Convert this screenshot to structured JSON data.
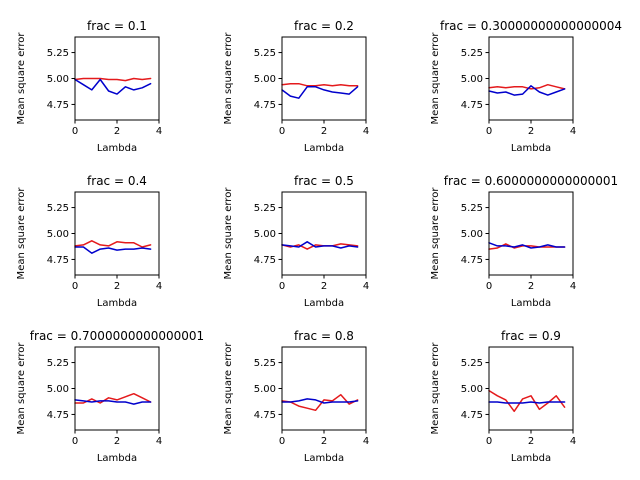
{
  "chart_data": [
    {
      "type": "line",
      "title": "frac = 0.1",
      "xlabel": "Lambda",
      "ylabel": "Mean square error",
      "xlim": [
        0,
        4
      ],
      "ylim": [
        4.6,
        5.4
      ],
      "xticks": [
        0,
        2,
        4
      ],
      "yticks": [
        4.75,
        5.0,
        5.25
      ],
      "x": [
        0,
        0.4,
        0.8,
        1.2,
        1.6,
        2.0,
        2.4,
        2.8,
        3.2,
        3.6
      ],
      "series": [
        {
          "color": "#e41a1c",
          "values": [
            4.99,
            5.0,
            5.0,
            5.0,
            4.99,
            4.99,
            4.98,
            5.0,
            4.99,
            5.0
          ]
        },
        {
          "color": "#0000cc",
          "values": [
            4.99,
            4.94,
            4.89,
            4.99,
            4.88,
            4.85,
            4.92,
            4.89,
            4.91,
            4.95
          ]
        }
      ]
    },
    {
      "type": "line",
      "title": "frac = 0.2",
      "xlabel": "Lambda",
      "ylabel": "Mean square error",
      "xlim": [
        0,
        4
      ],
      "ylim": [
        4.6,
        5.4
      ],
      "xticks": [
        0,
        2,
        4
      ],
      "yticks": [
        4.75,
        5.0,
        5.25
      ],
      "x": [
        0,
        0.4,
        0.8,
        1.2,
        1.6,
        2.0,
        2.4,
        2.8,
        3.2,
        3.6
      ],
      "series": [
        {
          "color": "#e41a1c",
          "values": [
            4.94,
            4.95,
            4.95,
            4.93,
            4.93,
            4.94,
            4.93,
            4.94,
            4.93,
            4.93
          ]
        },
        {
          "color": "#0000cc",
          "values": [
            4.89,
            4.83,
            4.81,
            4.92,
            4.92,
            4.89,
            4.87,
            4.86,
            4.85,
            4.92
          ]
        }
      ]
    },
    {
      "type": "line",
      "title": "frac = 0.30000000000000004",
      "xlabel": "Lambda",
      "ylabel": "Mean square error",
      "xlim": [
        0,
        4
      ],
      "ylim": [
        4.6,
        5.4
      ],
      "xticks": [
        0,
        2,
        4
      ],
      "yticks": [
        4.75,
        5.0,
        5.25
      ],
      "x": [
        0,
        0.4,
        0.8,
        1.2,
        1.6,
        2.0,
        2.4,
        2.8,
        3.2,
        3.6
      ],
      "series": [
        {
          "color": "#e41a1c",
          "values": [
            4.91,
            4.92,
            4.91,
            4.92,
            4.92,
            4.9,
            4.91,
            4.94,
            4.92,
            4.9
          ]
        },
        {
          "color": "#0000cc",
          "values": [
            4.88,
            4.86,
            4.87,
            4.84,
            4.85,
            4.93,
            4.87,
            4.84,
            4.87,
            4.9
          ]
        }
      ]
    },
    {
      "type": "line",
      "title": "frac = 0.4",
      "xlabel": "Lambda",
      "ylabel": "Mean square error",
      "xlim": [
        0,
        4
      ],
      "ylim": [
        4.6,
        5.4
      ],
      "xticks": [
        0,
        2,
        4
      ],
      "yticks": [
        4.75,
        5.0,
        5.25
      ],
      "x": [
        0,
        0.4,
        0.8,
        1.2,
        1.6,
        2.0,
        2.4,
        2.8,
        3.2,
        3.6
      ],
      "series": [
        {
          "color": "#e41a1c",
          "values": [
            4.88,
            4.89,
            4.93,
            4.89,
            4.88,
            4.92,
            4.91,
            4.91,
            4.87,
            4.89
          ]
        },
        {
          "color": "#0000cc",
          "values": [
            4.87,
            4.87,
            4.81,
            4.85,
            4.86,
            4.84,
            4.85,
            4.85,
            4.86,
            4.85
          ]
        }
      ]
    },
    {
      "type": "line",
      "title": "frac = 0.5",
      "xlabel": "Lambda",
      "ylabel": "Mean square error",
      "xlim": [
        0,
        4
      ],
      "ylim": [
        4.6,
        5.4
      ],
      "xticks": [
        0,
        2,
        4
      ],
      "yticks": [
        4.75,
        5.0,
        5.25
      ],
      "x": [
        0,
        0.4,
        0.8,
        1.2,
        1.6,
        2.0,
        2.4,
        2.8,
        3.2,
        3.6
      ],
      "series": [
        {
          "color": "#e41a1c",
          "values": [
            4.89,
            4.87,
            4.89,
            4.85,
            4.89,
            4.88,
            4.88,
            4.9,
            4.89,
            4.88
          ]
        },
        {
          "color": "#0000cc",
          "values": [
            4.89,
            4.88,
            4.87,
            4.92,
            4.87,
            4.88,
            4.88,
            4.86,
            4.88,
            4.87
          ]
        }
      ]
    },
    {
      "type": "line",
      "title": "frac = 0.6000000000000001",
      "xlabel": "Lambda",
      "ylabel": "Mean square error",
      "xlim": [
        0,
        4
      ],
      "ylim": [
        4.6,
        5.4
      ],
      "xticks": [
        0,
        2,
        4
      ],
      "yticks": [
        4.75,
        5.0,
        5.25
      ],
      "x": [
        0,
        0.4,
        0.8,
        1.2,
        1.6,
        2.0,
        2.4,
        2.8,
        3.2,
        3.6
      ],
      "series": [
        {
          "color": "#e41a1c",
          "values": [
            4.85,
            4.86,
            4.9,
            4.86,
            4.88,
            4.88,
            4.87,
            4.87,
            4.87,
            4.87
          ]
        },
        {
          "color": "#0000cc",
          "values": [
            4.91,
            4.88,
            4.88,
            4.87,
            4.89,
            4.86,
            4.87,
            4.89,
            4.87,
            4.87
          ]
        }
      ]
    },
    {
      "type": "line",
      "title": "frac = 0.7000000000000001",
      "xlabel": "Lambda",
      "ylabel": "Mean square error",
      "xlim": [
        0,
        4
      ],
      "ylim": [
        4.6,
        5.4
      ],
      "xticks": [
        0,
        2,
        4
      ],
      "yticks": [
        4.75,
        5.0,
        5.25
      ],
      "x": [
        0,
        0.4,
        0.8,
        1.2,
        1.6,
        2.0,
        2.4,
        2.8,
        3.2,
        3.6
      ],
      "series": [
        {
          "color": "#e41a1c",
          "values": [
            4.86,
            4.86,
            4.9,
            4.86,
            4.91,
            4.89,
            4.92,
            4.95,
            4.91,
            4.87
          ]
        },
        {
          "color": "#0000cc",
          "values": [
            4.89,
            4.88,
            4.87,
            4.88,
            4.88,
            4.87,
            4.87,
            4.85,
            4.87,
            4.87
          ]
        }
      ]
    },
    {
      "type": "line",
      "title": "frac = 0.8",
      "xlabel": "Lambda",
      "ylabel": "Mean square error",
      "xlim": [
        0,
        4
      ],
      "ylim": [
        4.6,
        5.4
      ],
      "xticks": [
        0,
        2,
        4
      ],
      "yticks": [
        4.75,
        5.0,
        5.25
      ],
      "x": [
        0,
        0.4,
        0.8,
        1.2,
        1.6,
        2.0,
        2.4,
        2.8,
        3.2,
        3.6
      ],
      "series": [
        {
          "color": "#e41a1c",
          "values": [
            4.88,
            4.87,
            4.83,
            4.81,
            4.79,
            4.89,
            4.88,
            4.94,
            4.85,
            4.89
          ]
        },
        {
          "color": "#0000cc",
          "values": [
            4.87,
            4.87,
            4.88,
            4.9,
            4.89,
            4.86,
            4.87,
            4.87,
            4.87,
            4.88
          ]
        }
      ]
    },
    {
      "type": "line",
      "title": "frac = 0.9",
      "xlabel": "Lambda",
      "ylabel": "Mean square error",
      "xlim": [
        0,
        4
      ],
      "ylim": [
        4.6,
        5.4
      ],
      "xticks": [
        0,
        2,
        4
      ],
      "yticks": [
        4.75,
        5.0,
        5.25
      ],
      "x": [
        0,
        0.4,
        0.8,
        1.2,
        1.6,
        2.0,
        2.4,
        2.8,
        3.2,
        3.6
      ],
      "series": [
        {
          "color": "#e41a1c",
          "values": [
            4.98,
            4.93,
            4.89,
            4.78,
            4.9,
            4.93,
            4.8,
            4.86,
            4.93,
            4.82
          ]
        },
        {
          "color": "#0000cc",
          "values": [
            4.87,
            4.87,
            4.86,
            4.86,
            4.86,
            4.87,
            4.86,
            4.87,
            4.87,
            4.87
          ]
        }
      ]
    }
  ]
}
